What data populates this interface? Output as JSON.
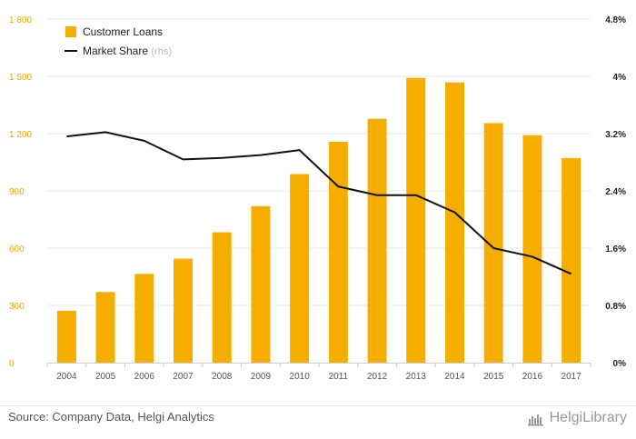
{
  "chart_data": {
    "type": "bar+line",
    "categories": [
      "2004",
      "2005",
      "2006",
      "2007",
      "2008",
      "2009",
      "2010",
      "2011",
      "2012",
      "2013",
      "2014",
      "2015",
      "2016",
      "2017"
    ],
    "series": [
      {
        "name": "Customer Loans",
        "type": "bar",
        "axis": "left",
        "color": "#f5ad00",
        "values": [
          272,
          370,
          465,
          545,
          683,
          820,
          988,
          1157,
          1278,
          1492,
          1468,
          1255,
          1192,
          1072
        ]
      },
      {
        "name": "Market Share",
        "name_suffix": "(rhs)",
        "type": "line",
        "axis": "right",
        "color": "#111111",
        "values": [
          3.16,
          3.22,
          3.1,
          2.84,
          2.86,
          2.9,
          2.97,
          2.46,
          2.34,
          2.34,
          2.1,
          1.6,
          1.48,
          1.24
        ]
      }
    ],
    "y_left": {
      "min": 0,
      "max": 1800,
      "ticks": [
        0,
        300,
        600,
        900,
        1200,
        1500,
        1800
      ],
      "tick_labels": [
        "0",
        "300",
        "600",
        "900",
        "1 200",
        "1 500",
        "1 800"
      ],
      "color": "#f0a500"
    },
    "y_right": {
      "min": 0,
      "max": 4.8,
      "ticks": [
        0,
        0.8,
        1.6,
        2.4,
        3.2,
        4.0,
        4.8
      ],
      "tick_labels": [
        "0%",
        "0.8%",
        "1.6%",
        "2.4%",
        "3.2%",
        "4%",
        "4.8%"
      ]
    },
    "grid": true,
    "legend_position": "top-left"
  },
  "footer": {
    "source": "Source: Company Data, Helgi Analytics",
    "logo_text": "HelgiLibrary",
    "logo_icon": "helgi-logo-icon"
  }
}
